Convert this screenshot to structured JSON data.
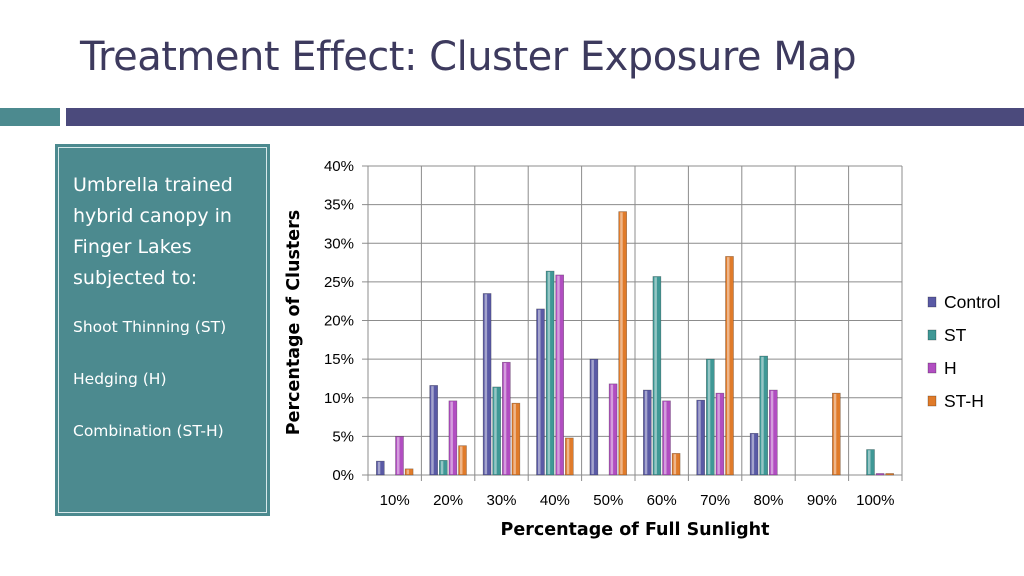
{
  "slide": {
    "title": "Treatment Effect: Cluster Exposure Map",
    "colors": {
      "accent_teal": "#4c8a8f",
      "accent_purple": "#4b4a7c"
    }
  },
  "sidebar": {
    "intro": "Umbrella trained hybrid canopy in Finger Lakes subjected to:",
    "items": [
      {
        "label": "Shoot Thinning (ST)"
      },
      {
        "label": "Hedging (H)"
      },
      {
        "label": "Combination (ST-H)"
      }
    ]
  },
  "chart_data": {
    "type": "bar",
    "title": "",
    "xlabel": "Percentage of Full Sunlight",
    "ylabel": "Percentage of Clusters",
    "categories": [
      "10%",
      "20%",
      "30%",
      "40%",
      "50%",
      "60%",
      "70%",
      "80%",
      "90%",
      "100%"
    ],
    "yticks": [
      "0%",
      "5%",
      "10%",
      "15%",
      "20%",
      "25%",
      "30%",
      "35%",
      "40%"
    ],
    "ylim": [
      0,
      40
    ],
    "grid": true,
    "legend_position": "right",
    "series": [
      {
        "name": "Control",
        "color": "#5a5aa5",
        "values": [
          1.8,
          11.6,
          23.5,
          21.5,
          15.0,
          11.0,
          9.7,
          5.4,
          0,
          0
        ]
      },
      {
        "name": "ST",
        "color": "#3f9896",
        "values": [
          0,
          1.9,
          11.4,
          26.4,
          0,
          25.7,
          15.0,
          15.4,
          0,
          3.3
        ]
      },
      {
        "name": "H",
        "color": "#b14ec1",
        "values": [
          5.0,
          9.6,
          14.6,
          25.9,
          11.8,
          9.6,
          10.6,
          11.0,
          0,
          0.2
        ]
      },
      {
        "name": "ST-H",
        "color": "#e07b2a",
        "values": [
          0.8,
          3.8,
          9.3,
          4.8,
          34.1,
          2.8,
          28.3,
          0,
          10.6,
          0.2
        ]
      }
    ]
  }
}
